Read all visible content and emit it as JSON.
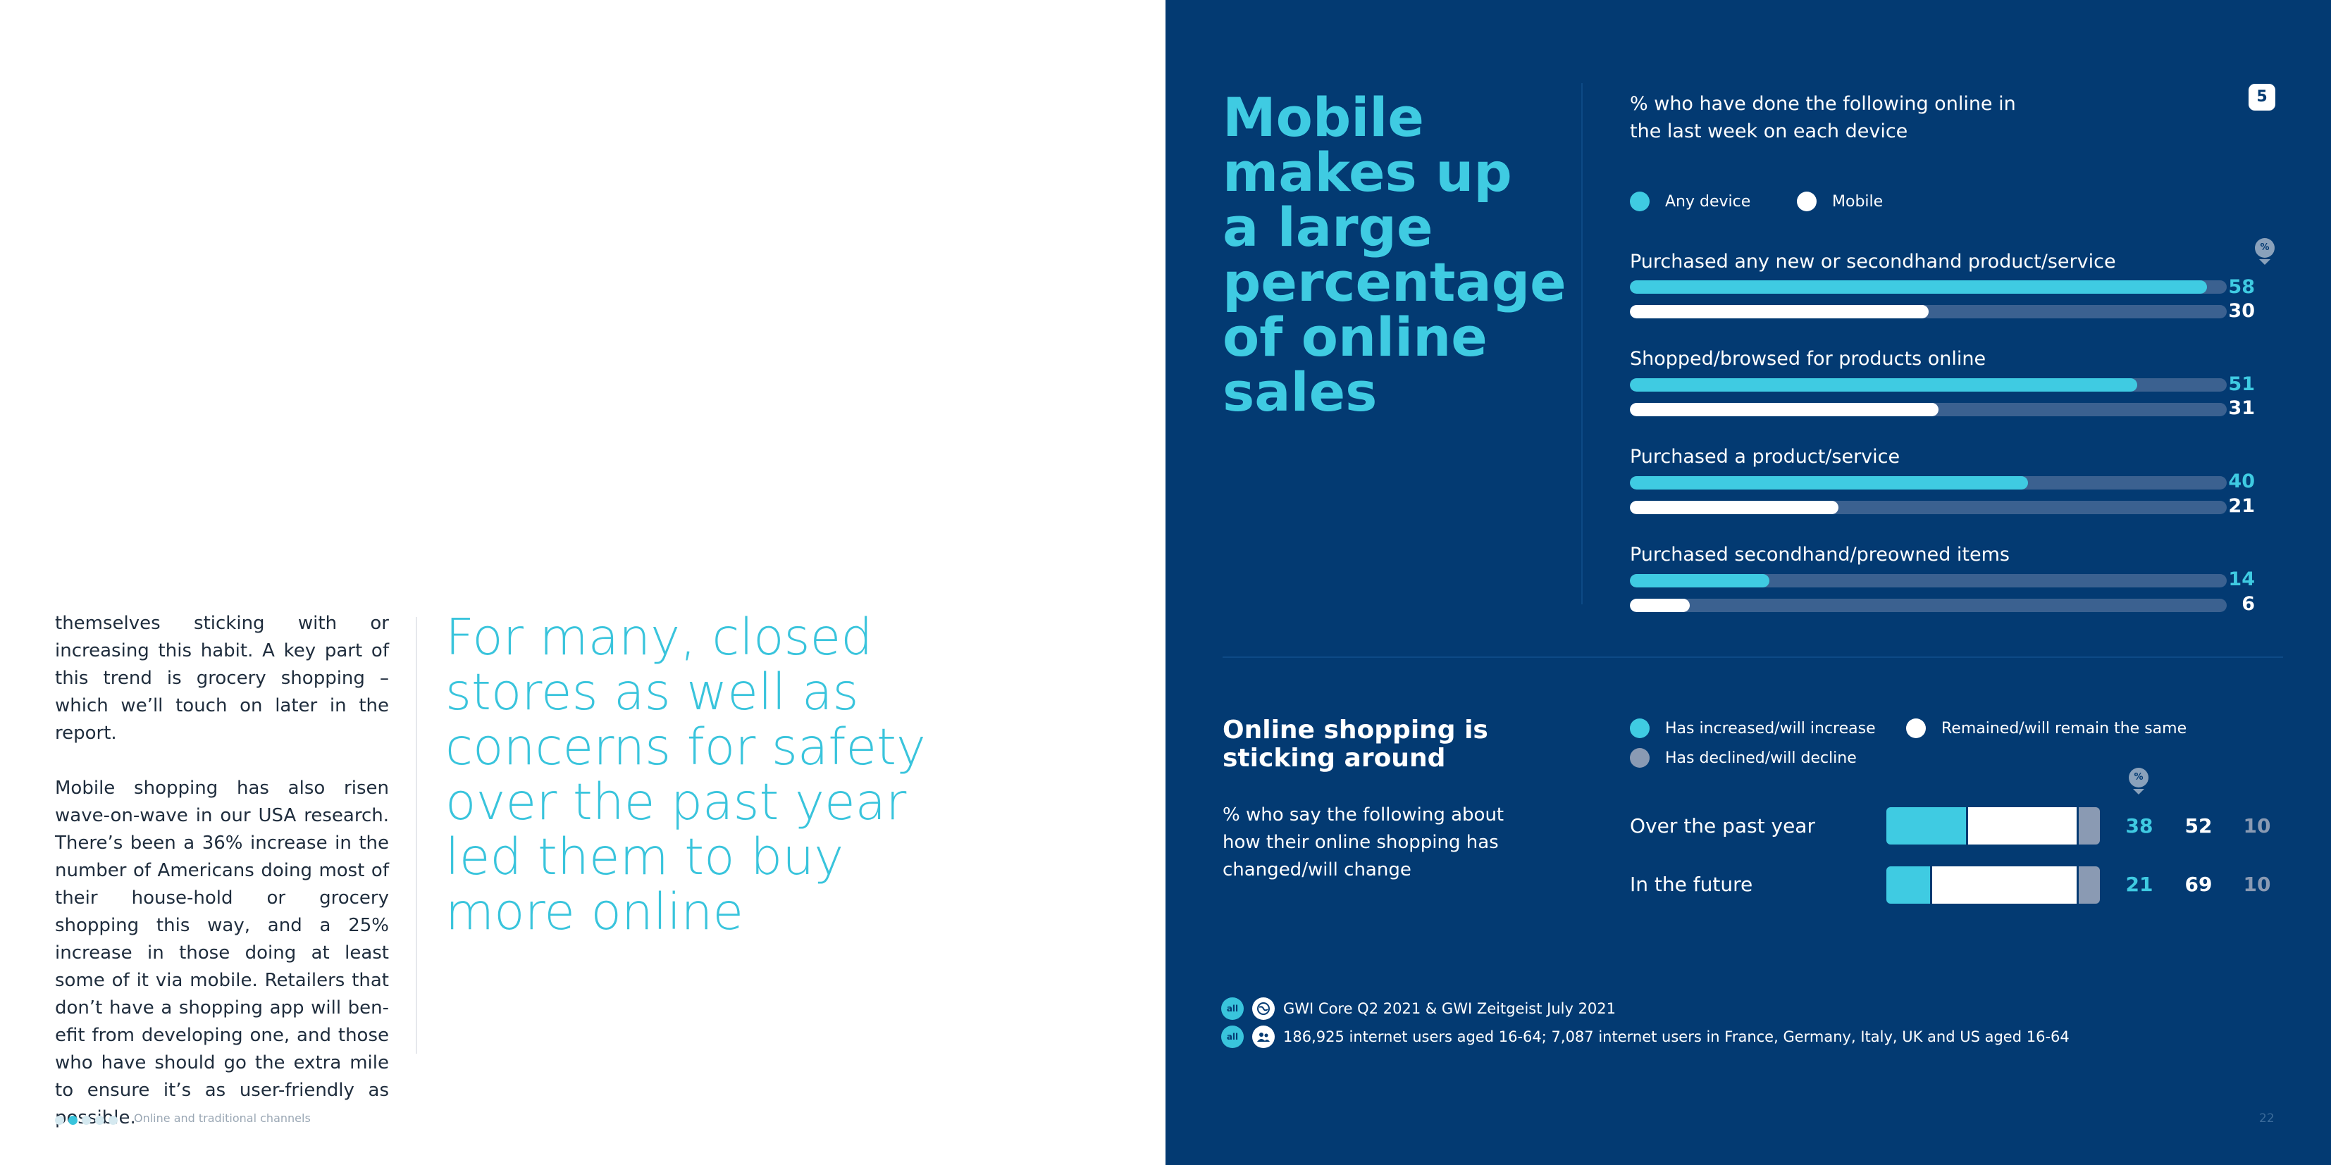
{
  "left": {
    "paragraphs": [
      "themselves sticking with or increasing this habit. A key part of this trend is grocery shopping – which we’ll touch on later in the report.",
      "Mobile shopping has also risen wave-on-wave in our USA research. There’s been a 36% increase in the number of Americans doing most of their house-hold or grocery shopping this way, and a 25% increase in those doing at least some of it via mobile. Retailers that don’t have a shopping app will ben-efit from developing one, and those who have should go the extra mile to ensure it’s as user-friendly as possible."
    ],
    "pull_quote": "For many, closed stores as well as concerns for safety over the past year led them to buy more online",
    "footer_label": "Online and traditional channels",
    "footer_dots_total": 5,
    "footer_dots_active_index": 1
  },
  "right": {
    "headline": "Mobile makes up a large percentage of online sales",
    "page_badge": "5",
    "chart1_subtitle": "% who have done the following online in the last week on each device",
    "percent_icon_label": "%",
    "section2_title": "Online shopping is sticking around",
    "section2_subtitle": "% who say the following about how their online shopping has changed/will change",
    "sources": [
      {
        "badge": "all",
        "icon": "globe-icon",
        "text": "GWI Core Q2 2021 & GWI Zeitgeist July 2021"
      },
      {
        "badge": "all",
        "icon": "people-icon",
        "text": "186,925 internet users aged 16-64; 7,087 internet users in France, Germany, Italy, UK and US aged 16-64"
      }
    ],
    "page_number": "22"
  },
  "colors": {
    "navy": "#033a72",
    "cyan": "#3fcbe2",
    "white": "#ffffff",
    "grey": "#8a9ab3",
    "track": "#3b6190"
  },
  "chart_data": [
    {
      "type": "bar",
      "orientation": "horizontal",
      "title": "% who have done the following online in the last week on each device",
      "categories": [
        "Purchased any new or secondhand product/service",
        "Shopped/browsed for products online",
        "Purchased a product/service",
        "Purchased secondhand/preowned items"
      ],
      "series": [
        {
          "name": "Any device",
          "color": "#3fcbe2",
          "values": [
            58,
            51,
            40,
            14
          ]
        },
        {
          "name": "Mobile",
          "color": "#ffffff",
          "values": [
            30,
            31,
            21,
            6
          ]
        }
      ],
      "xlim": [
        0,
        60
      ],
      "legend": "top-left",
      "grid": false
    },
    {
      "type": "bar",
      "orientation": "horizontal",
      "stacked": true,
      "title": "Online shopping is sticking around",
      "categories": [
        "Over the past year",
        "In the future"
      ],
      "series": [
        {
          "name": "Has increased/will increase",
          "color": "#3fcbe2",
          "values": [
            38,
            21
          ]
        },
        {
          "name": "Remained/will remain the same",
          "color": "#ffffff",
          "values": [
            52,
            69
          ]
        },
        {
          "name": "Has declined/will decline",
          "color": "#8a9ab3",
          "values": [
            10,
            10
          ]
        }
      ],
      "xlim": [
        0,
        100
      ],
      "legend": "top",
      "grid": false
    }
  ]
}
